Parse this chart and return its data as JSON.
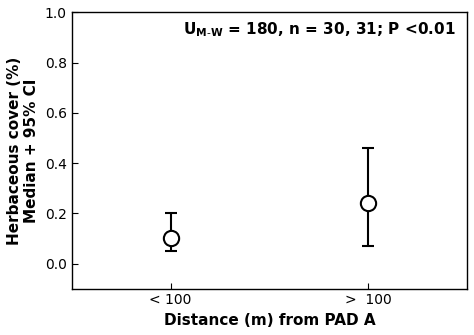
{
  "categories": [
    "< 100",
    ">  100"
  ],
  "x_positions": [
    1,
    2
  ],
  "medians": [
    0.1,
    0.24
  ],
  "ci_lower": [
    0.05,
    0.07
  ],
  "ci_upper": [
    0.2,
    0.46
  ],
  "ylim": [
    -0.1,
    1.0
  ],
  "yticks": [
    0.0,
    0.2,
    0.4,
    0.6,
    0.8,
    1.0
  ],
  "xlim": [
    0.5,
    2.5
  ],
  "xlabel": "Distance (m) from PAD A",
  "ylabel_line1": "Herbaceous cover (%)",
  "ylabel_line2": "Median + 95% CI",
  "marker_size": 11,
  "linewidth": 1.5,
  "marker_color": "white",
  "marker_edgecolor": "black",
  "capsize": 4,
  "background_color": "white",
  "tick_label_fontsize": 10,
  "axis_label_fontsize": 11,
  "annotation_fontsize": 11
}
